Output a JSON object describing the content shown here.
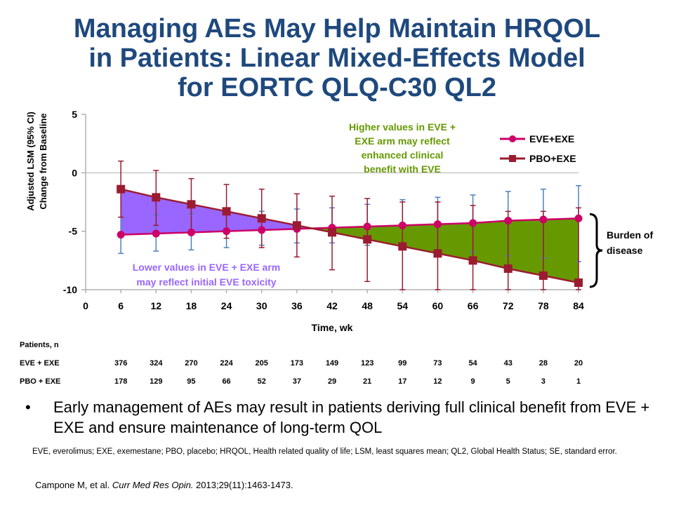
{
  "title": {
    "line1": "Managing AEs May Help Maintain HRQOL",
    "line2": "in Patients: Linear Mixed-Effects Model",
    "line3": "for EORTC QLQ-C30 QL2"
  },
  "chart_data": {
    "type": "line",
    "xlabel": "Time, wk",
    "ylabel_line1": "Adjusted LSM (95% CI)",
    "ylabel_line2": "Change from Baseline",
    "xlim": [
      0,
      84
    ],
    "ylim": [
      -10,
      5
    ],
    "x_ticks": [
      "0",
      "6",
      "12",
      "18",
      "24",
      "30",
      "36",
      "42",
      "48",
      "54",
      "60",
      "66",
      "72",
      "78",
      "84"
    ],
    "y_ticks": [
      "5",
      "0",
      "-5",
      "-10"
    ],
    "y_tick_values": [
      5,
      0,
      -5,
      -10
    ],
    "x": [
      6,
      12,
      18,
      24,
      30,
      36,
      42,
      48,
      54,
      60,
      66,
      72,
      78,
      84
    ],
    "legend_position": "top-right",
    "colors": {
      "eve": "#cc0066",
      "pbo": "#9b1b30",
      "ci": "#4f81bd",
      "purple": "#9966ff",
      "green": "#669900"
    },
    "series": [
      {
        "name": "EVE+EXE",
        "values": [
          -5.3,
          -5.2,
          -5.1,
          -5.0,
          -4.9,
          -4.8,
          -4.7,
          -4.6,
          -4.5,
          -4.4,
          -4.3,
          -4.1,
          -4.0,
          -3.9
        ],
        "ci_low": [
          -6.9,
          -6.7,
          -6.6,
          -6.4,
          -6.2,
          -6.0,
          -6.0,
          -6.2,
          -6.5,
          -6.7,
          -6.8,
          -7.1,
          -7.3,
          -7.6
        ],
        "ci_high": [
          -3.8,
          -3.6,
          -3.5,
          -3.4,
          -3.3,
          -3.1,
          -3.0,
          -2.7,
          -2.3,
          -2.1,
          -1.9,
          -1.6,
          -1.4,
          -1.1
        ]
      },
      {
        "name": "PBO+EXE",
        "values": [
          -1.4,
          -2.1,
          -2.7,
          -3.3,
          -3.9,
          -4.5,
          -5.1,
          -5.7,
          -6.3,
          -6.9,
          -7.5,
          -8.2,
          -8.8,
          -9.4
        ],
        "ci_low": [
          -3.8,
          -4.5,
          -5.1,
          -5.6,
          -6.4,
          -7.2,
          -8.3,
          -9.3,
          -10,
          -10,
          -10,
          -10,
          -10,
          -10
        ],
        "ci_high": [
          1.0,
          0.2,
          -0.5,
          -1.0,
          -1.4,
          -1.8,
          -2.0,
          -2.2,
          -2.5,
          -2.5,
          -2.8,
          -3.3,
          -3.3,
          -3.0
        ]
      }
    ],
    "annotations": {
      "higher_1": "Higher values in EVE +",
      "higher_2": "EXE arm may reflect",
      "higher_3": "enhanced clinical",
      "higher_4": "benefit with EVE",
      "lower_1": "Lower values in EVE + EXE arm",
      "lower_2": "may reflect initial EVE toxicity",
      "burden_1": "Burden of",
      "burden_2": "disease"
    }
  },
  "patients_table": {
    "header": "Patients, n",
    "rows": [
      {
        "label": "EVE + EXE",
        "values": [
          "376",
          "324",
          "270",
          "224",
          "205",
          "173",
          "149",
          "123",
          "99",
          "73",
          "54",
          "43",
          "28",
          "20"
        ]
      },
      {
        "label": "PBO + EXE",
        "values": [
          "178",
          "129",
          "95",
          "66",
          "52",
          "37",
          "29",
          "21",
          "17",
          "12",
          "9",
          "5",
          "3",
          "1"
        ]
      }
    ]
  },
  "bullet": {
    "symbol": "•",
    "text": "Early management of AEs may result in patients deriving full clinical benefit from EVE + EXE and ensure maintenance of long-term QOL"
  },
  "footnote": "EVE, everolimus; EXE, exemestane; PBO, placebo; HRQOL, Health related quality of life; LSM, least squares mean; QL2, Global Health Status; SE, standard error.",
  "citation": {
    "authors": "Campone M, et al. ",
    "journal": "Curr Med Res Opin.",
    "details": " 2013;29(11):1463-1473."
  }
}
